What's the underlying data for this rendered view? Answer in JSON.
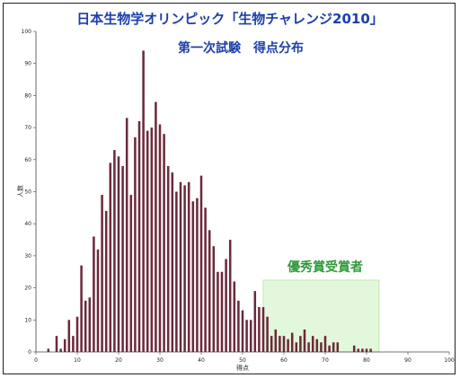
{
  "chart_data": {
    "type": "bar",
    "title": "日本生物学オリンピック「生物チャレンジ2010」",
    "subtitle": "第一次試験　得点分布",
    "xlabel": "得点",
    "ylabel": "人数",
    "xlim": [
      0,
      100
    ],
    "ylim": [
      0,
      100
    ],
    "xticks": [
      0,
      10,
      20,
      30,
      40,
      50,
      60,
      70,
      80,
      90,
      100
    ],
    "yticks": [
      0,
      10,
      20,
      30,
      40,
      50,
      60,
      70,
      80,
      90,
      100
    ],
    "grid": false,
    "bar_color": "#6b2a3a",
    "x": [
      3,
      5,
      6,
      7,
      8,
      9,
      10,
      11,
      12,
      13,
      14,
      15,
      16,
      17,
      18,
      19,
      20,
      21,
      22,
      23,
      24,
      25,
      26,
      27,
      28,
      29,
      30,
      31,
      32,
      33,
      34,
      35,
      36,
      37,
      38,
      39,
      40,
      41,
      42,
      43,
      44,
      45,
      46,
      47,
      48,
      49,
      50,
      51,
      52,
      53,
      54,
      55,
      56,
      57,
      58,
      59,
      60,
      61,
      62,
      63,
      64,
      65,
      66,
      67,
      68,
      69,
      70,
      71,
      72,
      73,
      74,
      75,
      76,
      77,
      78,
      79,
      80,
      81,
      82
    ],
    "values": [
      1,
      5,
      1,
      4,
      10,
      5,
      11,
      27,
      16,
      17,
      36,
      32,
      49,
      44,
      59,
      63,
      61,
      58,
      73,
      49,
      67,
      72,
      94,
      69,
      70,
      78,
      71,
      68,
      58,
      56,
      50,
      53,
      52,
      53,
      47,
      48,
      55,
      45,
      38,
      33,
      25,
      25,
      29,
      35,
      22,
      16,
      13,
      10,
      10,
      19,
      14,
      14,
      11,
      5,
      7,
      5,
      5,
      4,
      6,
      3,
      5,
      7,
      3,
      5,
      4,
      3,
      5,
      2,
      3,
      3,
      0,
      0,
      0,
      2,
      1,
      1,
      1,
      1,
      0
    ],
    "highlight": {
      "label": "優秀賞受賞者",
      "range": [
        55,
        83
      ],
      "fill": "#e3f7dc",
      "border": "#bfe8b0"
    },
    "frame_color": "#222222",
    "title_color": "#1c3fa8",
    "award_color": "#2f9a3a"
  }
}
